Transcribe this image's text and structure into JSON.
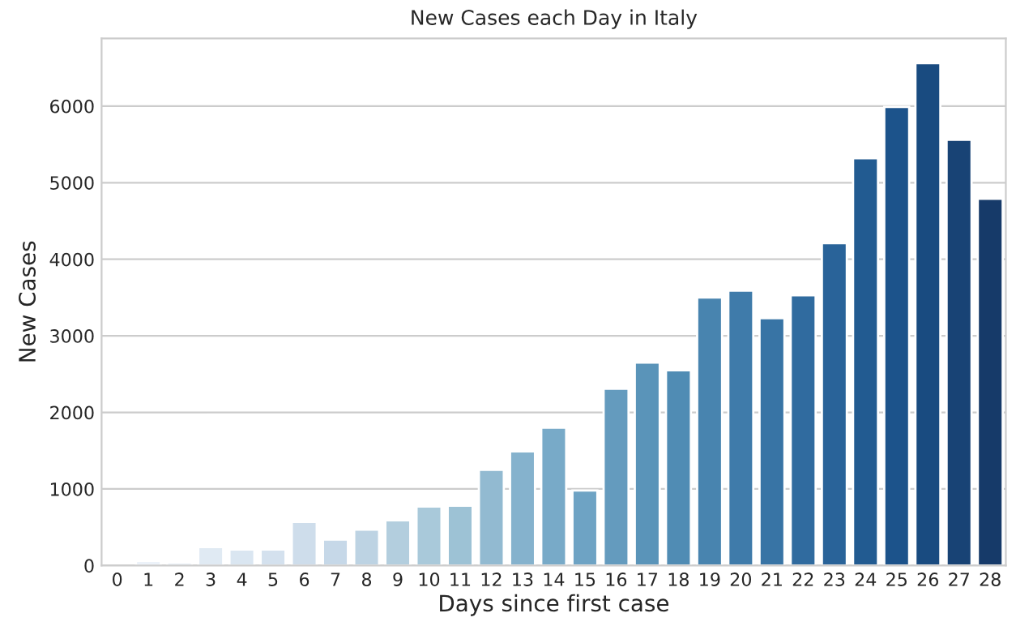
{
  "chart_data": {
    "type": "bar",
    "title": "New Cases each Day in Italy",
    "xlabel": "Days since first case",
    "ylabel": "New Cases",
    "categories": [
      "0",
      "1",
      "2",
      "3",
      "4",
      "5",
      "6",
      "7",
      "8",
      "9",
      "10",
      "11",
      "12",
      "13",
      "14",
      "15",
      "16",
      "17",
      "18",
      "19",
      "20",
      "21",
      "22",
      "23",
      "24",
      "25",
      "26",
      "27",
      "28"
    ],
    "values": [
      null,
      60,
      40,
      240,
      210,
      210,
      570,
      340,
      470,
      590,
      770,
      780,
      1250,
      1490,
      1800,
      980,
      2310,
      2650,
      2550,
      3500,
      3590,
      3230,
      3530,
      4210,
      5320,
      5990,
      6560,
      5560,
      4790
    ],
    "colors": [
      "#f2f7fb",
      "#ecf2f9",
      "#e6eef6",
      "#e0eaf3",
      "#dae6f1",
      "#d4e1ee",
      "#ceddeb",
      "#c6d8e8",
      "#bdd3e3",
      "#b3cede",
      "#a9c9da",
      "#9dc2d5",
      "#92bad1",
      "#85b2cd",
      "#78aac8",
      "#6ea3c4",
      "#649bbe",
      "#5a94b9",
      "#508cb4",
      "#4884af",
      "#3f7baa",
      "#3874a5",
      "#306b9f",
      "#296399",
      "#225b91",
      "#1c538b",
      "#194b80",
      "#184375",
      "#163a69"
    ],
    "ylim": [
      0,
      6885
    ],
    "yticks": [
      0,
      1000,
      2000,
      3000,
      4000,
      5000,
      6000
    ],
    "grid": "y",
    "legend": false
  }
}
